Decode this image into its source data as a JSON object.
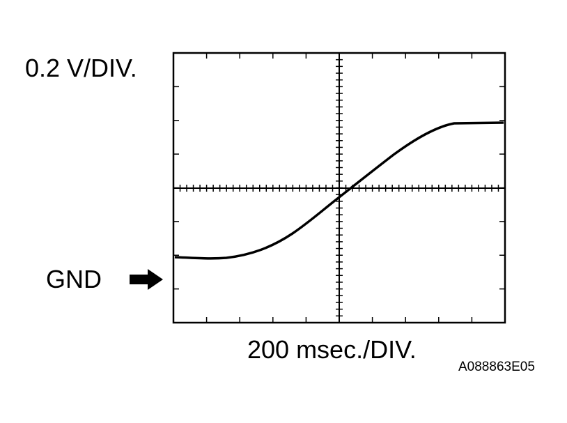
{
  "volts_per_div": "0.2 V/DIV.",
  "ground_label": "GND",
  "time_per_div": "200 msec./DIV.",
  "figure_id": "A088863E05"
}
